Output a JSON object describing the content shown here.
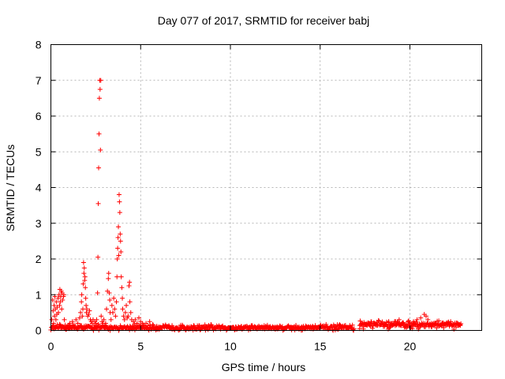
{
  "chart_data": {
    "type": "scatter",
    "title": "Day 077 of 2017, SRMTID for receiver babj",
    "xlabel": "GPS time / hours",
    "ylabel": "SRMTID / TECUs",
    "xlim": [
      0,
      24
    ],
    "ylim": [
      0,
      8
    ],
    "x_ticks": [
      0,
      5,
      10,
      15,
      20
    ],
    "y_ticks": [
      0,
      1,
      2,
      3,
      4,
      5,
      6,
      7,
      8
    ],
    "grid": true,
    "marker": "+",
    "series": [
      {
        "name": "SRMTID",
        "color": "#ff0000",
        "points": [
          [
            0.05,
            0.3
          ],
          [
            0.1,
            0.85
          ],
          [
            0.12,
            0.55
          ],
          [
            0.15,
            0.2
          ],
          [
            0.18,
            0.7
          ],
          [
            0.2,
            0.4
          ],
          [
            0.22,
            0.95
          ],
          [
            0.25,
            0.6
          ],
          [
            0.28,
            0.3
          ],
          [
            0.3,
            0.8
          ],
          [
            0.33,
            0.45
          ],
          [
            0.35,
            0.65
          ],
          [
            0.4,
            0.9
          ],
          [
            0.42,
            0.5
          ],
          [
            0.45,
            1.0
          ],
          [
            0.48,
            0.7
          ],
          [
            0.5,
            1.15
          ],
          [
            0.52,
            0.8
          ],
          [
            0.55,
            0.95
          ],
          [
            0.58,
            1.1
          ],
          [
            0.6,
            0.6
          ],
          [
            0.62,
            1.05
          ],
          [
            0.65,
            0.85
          ],
          [
            0.7,
            0.95
          ],
          [
            0.72,
            1.0
          ],
          [
            0.75,
            0.3
          ],
          [
            0.8,
            0.15
          ],
          [
            0.85,
            0.08
          ],
          [
            0.9,
            0.1
          ],
          [
            0.95,
            0.12
          ],
          [
            1.0,
            0.15
          ],
          [
            1.05,
            0.2
          ],
          [
            1.1,
            0.1
          ],
          [
            1.2,
            0.25
          ],
          [
            1.3,
            0.15
          ],
          [
            1.4,
            0.3
          ],
          [
            1.5,
            0.2
          ],
          [
            1.6,
            0.35
          ],
          [
            1.65,
            0.5
          ],
          [
            1.7,
            0.8
          ],
          [
            1.72,
            1.0
          ],
          [
            1.75,
            0.4
          ],
          [
            1.78,
            0.6
          ],
          [
            1.8,
            1.3
          ],
          [
            1.82,
            1.9
          ],
          [
            1.84,
            1.6
          ],
          [
            1.86,
            1.75
          ],
          [
            1.88,
            1.4
          ],
          [
            1.9,
            1.5
          ],
          [
            1.92,
            1.2
          ],
          [
            1.94,
            0.9
          ],
          [
            1.96,
            0.7
          ],
          [
            1.98,
            0.5
          ],
          [
            2.0,
            0.6
          ],
          [
            2.05,
            0.4
          ],
          [
            2.1,
            0.45
          ],
          [
            2.15,
            0.55
          ],
          [
            2.2,
            0.3
          ],
          [
            2.25,
            0.25
          ],
          [
            2.3,
            0.2
          ],
          [
            2.35,
            0.3
          ],
          [
            2.4,
            0.15
          ],
          [
            2.45,
            0.25
          ],
          [
            2.5,
            0.2
          ],
          [
            2.55,
            0.3
          ],
          [
            2.6,
            1.05
          ],
          [
            2.62,
            2.05
          ],
          [
            2.64,
            3.55
          ],
          [
            2.66,
            4.55
          ],
          [
            2.68,
            5.5
          ],
          [
            2.7,
            6.5
          ],
          [
            2.72,
            7.0
          ],
          [
            2.74,
            6.75
          ],
          [
            2.76,
            5.05
          ],
          [
            2.78,
            7.0
          ],
          [
            2.8,
            0.4
          ],
          [
            2.85,
            0.25
          ],
          [
            2.9,
            0.2
          ],
          [
            2.95,
            0.3
          ],
          [
            3.0,
            0.15
          ],
          [
            3.05,
            0.2
          ],
          [
            3.1,
            0.6
          ],
          [
            3.15,
            1.1
          ],
          [
            3.2,
            1.45
          ],
          [
            3.22,
            1.6
          ],
          [
            3.25,
            1.05
          ],
          [
            3.28,
            0.85
          ],
          [
            3.3,
            0.5
          ],
          [
            3.35,
            0.3
          ],
          [
            3.4,
            0.7
          ],
          [
            3.45,
            0.5
          ],
          [
            3.5,
            0.9
          ],
          [
            3.55,
            0.6
          ],
          [
            3.6,
            0.4
          ],
          [
            3.65,
            0.8
          ],
          [
            3.68,
            1.5
          ],
          [
            3.7,
            2.0
          ],
          [
            3.72,
            2.3
          ],
          [
            3.74,
            2.6
          ],
          [
            3.76,
            2.9
          ],
          [
            3.78,
            2.1
          ],
          [
            3.8,
            3.8
          ],
          [
            3.82,
            3.6
          ],
          [
            3.84,
            3.3
          ],
          [
            3.86,
            2.7
          ],
          [
            3.88,
            2.5
          ],
          [
            3.9,
            2.2
          ],
          [
            3.92,
            1.5
          ],
          [
            3.95,
            1.2
          ],
          [
            3.98,
            0.9
          ],
          [
            4.0,
            0.6
          ],
          [
            4.05,
            0.4
          ],
          [
            4.1,
            0.3
          ],
          [
            4.15,
            0.5
          ],
          [
            4.2,
            0.7
          ],
          [
            4.25,
            0.35
          ],
          [
            4.3,
            0.4
          ],
          [
            4.35,
            1.25
          ],
          [
            4.38,
            1.35
          ],
          [
            4.4,
            0.8
          ],
          [
            4.45,
            0.5
          ],
          [
            4.5,
            0.3
          ],
          [
            4.6,
            0.25
          ],
          [
            4.7,
            0.3
          ],
          [
            4.8,
            0.2
          ],
          [
            4.9,
            0.35
          ],
          [
            5.0,
            0.25
          ],
          [
            5.1,
            0.2
          ],
          [
            5.2,
            0.15
          ],
          [
            5.3,
            0.2
          ],
          [
            5.5,
            0.25
          ],
          [
            5.7,
            0.15
          ],
          [
            5.9,
            0.12
          ],
          [
            6.0,
            0.1
          ],
          [
            6.2,
            0.08
          ],
          [
            6.4,
            0.12
          ],
          [
            6.6,
            0.06
          ],
          [
            6.8,
            0.08
          ],
          [
            7.0,
            0.05
          ],
          [
            7.2,
            0.07
          ],
          [
            7.5,
            0.05
          ],
          [
            7.8,
            0.06
          ],
          [
            8.0,
            0.08
          ],
          [
            8.3,
            0.05
          ],
          [
            8.6,
            0.07
          ],
          [
            9.0,
            0.06
          ],
          [
            9.4,
            0.08
          ],
          [
            9.8,
            0.05
          ],
          [
            10.2,
            0.07
          ],
          [
            10.6,
            0.06
          ],
          [
            11.0,
            0.08
          ],
          [
            11.4,
            0.1
          ],
          [
            11.8,
            0.06
          ],
          [
            12.2,
            0.08
          ],
          [
            12.6,
            0.07
          ],
          [
            13.0,
            0.05
          ],
          [
            13.4,
            0.08
          ],
          [
            13.8,
            0.06
          ],
          [
            14.2,
            0.07
          ],
          [
            14.6,
            0.09
          ],
          [
            15.0,
            0.1
          ],
          [
            15.4,
            0.08
          ],
          [
            15.8,
            0.12
          ],
          [
            16.2,
            0.1
          ],
          [
            16.6,
            0.08
          ],
          [
            17.2,
            0.05
          ],
          [
            17.4,
            0.1
          ],
          [
            17.6,
            0.15
          ],
          [
            17.8,
            0.12
          ],
          [
            18.0,
            0.18
          ],
          [
            18.2,
            0.15
          ],
          [
            18.4,
            0.2
          ],
          [
            18.6,
            0.17
          ],
          [
            18.8,
            0.22
          ],
          [
            19.0,
            0.2
          ],
          [
            19.2,
            0.25
          ],
          [
            19.4,
            0.3
          ],
          [
            19.6,
            0.22
          ],
          [
            19.8,
            0.18
          ],
          [
            20.0,
            0.2
          ],
          [
            20.2,
            0.25
          ],
          [
            20.4,
            0.3
          ],
          [
            20.6,
            0.35
          ],
          [
            20.8,
            0.45
          ],
          [
            20.9,
            0.4
          ],
          [
            21.0,
            0.3
          ],
          [
            21.2,
            0.2
          ],
          [
            21.4,
            0.15
          ],
          [
            21.6,
            0.18
          ],
          [
            21.8,
            0.2
          ],
          [
            22.0,
            0.15
          ],
          [
            22.2,
            0.12
          ],
          [
            22.4,
            0.18
          ],
          [
            22.6,
            0.2
          ],
          [
            22.8,
            0.15
          ]
        ],
        "baseline_segments": [
          {
            "x_start": 0.0,
            "x_end": 16.9,
            "center": 0.08,
            "spread": 0.1
          },
          {
            "x_start": 17.2,
            "x_end": 22.85,
            "center": 0.16,
            "spread": 0.14
          }
        ]
      }
    ]
  }
}
